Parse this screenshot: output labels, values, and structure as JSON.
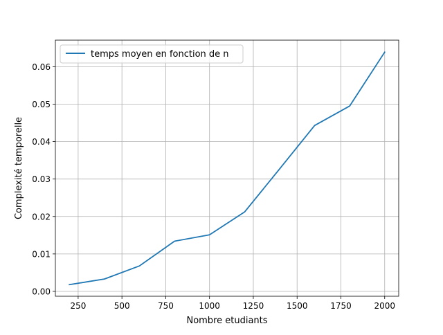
{
  "chart_data": {
    "type": "line",
    "title": "",
    "xlabel": "Nombre etudiants",
    "ylabel": "Complexité temporelle",
    "xlim": [
      120,
      2080
    ],
    "ylim": [
      -0.0013,
      0.0671
    ],
    "xticks": [
      250,
      500,
      750,
      1000,
      1250,
      1500,
      1750,
      2000
    ],
    "xtick_labels": [
      "250",
      "500",
      "750",
      "1000",
      "1250",
      "1500",
      "1750",
      "2000"
    ],
    "yticks": [
      0.0,
      0.01,
      0.02,
      0.03,
      0.04,
      0.05,
      0.06
    ],
    "ytick_labels": [
      "0.00",
      "0.01",
      "0.02",
      "0.03",
      "0.04",
      "0.05",
      "0.06"
    ],
    "grid": true,
    "legend_position": "upper-left",
    "series": [
      {
        "name": "temps moyen en fonction de n",
        "color": "#1f77b4",
        "x": [
          200,
          400,
          600,
          800,
          1000,
          1200,
          1400,
          1600,
          1800,
          2000
        ],
        "y": [
          0.0018,
          0.0033,
          0.0068,
          0.0134,
          0.0151,
          0.0212,
          0.0327,
          0.0443,
          0.0495,
          0.0639
        ]
      }
    ]
  }
}
